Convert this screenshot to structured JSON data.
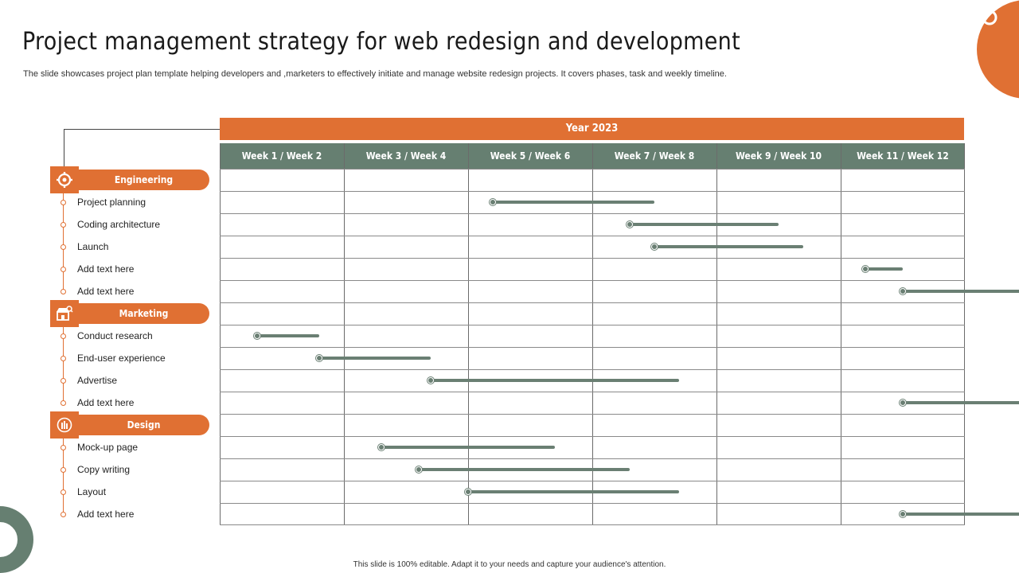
{
  "title": "Project management strategy for web redesign and development",
  "subtitle": "The slide showcases project plan template helping developers and ,marketers to effectively initiate and manage website redesign projects. It covers phases, task and weekly timeline.",
  "footer": "This slide is 100% editable.  Adapt it to your needs and capture your audience's attention.",
  "colors": {
    "accent": "#e07033",
    "header": "#667f71",
    "bar": "#6a7f73"
  },
  "timeline": {
    "year": "Year 2023",
    "weeks": [
      "Week 1 / Week 2",
      "Week 3 / Week 4",
      "Week 5 / Week 6",
      "Week 7 / Week 8",
      "Week 9 / Week 10",
      "Week 11 / Week 12"
    ]
  },
  "categories": [
    {
      "name": "Engineering",
      "icon": "gear-helmet-icon",
      "tasks": [
        {
          "label": "Project planning",
          "start": 2.2,
          "end": 3.5
        },
        {
          "label": "Coding architecture",
          "start": 3.3,
          "end": 4.5
        },
        {
          "label": "Launch",
          "start": 3.5,
          "end": 4.7
        },
        {
          "label": "Add text here",
          "start": 5.2,
          "end": 5.5
        },
        {
          "label": "Add text here",
          "start": 5.5,
          "end": 6.8
        }
      ]
    },
    {
      "name": "Marketing",
      "icon": "market-search-icon",
      "tasks": [
        {
          "label": "Conduct research",
          "start": 0.3,
          "end": 0.8
        },
        {
          "label": "End-user experience",
          "start": 0.8,
          "end": 1.7
        },
        {
          "label": "Advertise",
          "start": 1.7,
          "end": 3.7
        },
        {
          "label": "Add text here",
          "start": 5.5,
          "end": 6.8
        }
      ]
    },
    {
      "name": "Design",
      "icon": "design-tools-icon",
      "tasks": [
        {
          "label": "Mock-up page",
          "start": 1.3,
          "end": 2.7
        },
        {
          "label": "Copy writing",
          "start": 1.6,
          "end": 3.3
        },
        {
          "label": "Layout",
          "start": 2.0,
          "end": 3.7
        },
        {
          "label": "Add text here",
          "start": 5.5,
          "end": 6.8
        }
      ]
    }
  ]
}
